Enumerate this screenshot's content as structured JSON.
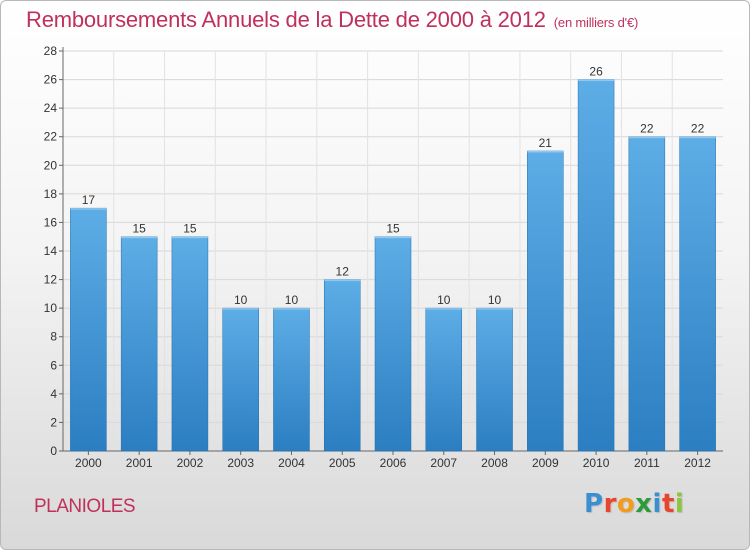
{
  "header": {
    "title": "Remboursements Annuels de la Dette de 2000 à 2012",
    "subtitle": "(en milliers d'€)"
  },
  "footer": {
    "commune": "PLANIOLES",
    "logo_letters": [
      {
        "ch": "P",
        "color": "#3a8fd0"
      },
      {
        "ch": "r",
        "color": "#e8452e"
      },
      {
        "ch": "o",
        "color": "#f39b1b"
      },
      {
        "ch": "x",
        "color": "#2e9b3a"
      },
      {
        "ch": "i",
        "color": "#3a8fd0"
      },
      {
        "ch": "t",
        "color": "#e8452e"
      },
      {
        "ch": "i",
        "color": "#8cc63f"
      }
    ]
  },
  "colors": {
    "bar_top": "#5dade6",
    "bar_bottom": "#2b7ec1",
    "title": "#c0305c"
  },
  "chart_data": {
    "type": "bar",
    "title": "Remboursements Annuels de la Dette de 2000 à 2012",
    "ylabel": "",
    "xlabel": "",
    "categories": [
      "2000",
      "2001",
      "2002",
      "2003",
      "2004",
      "2005",
      "2006",
      "2007",
      "2008",
      "2009",
      "2010",
      "2011",
      "2012"
    ],
    "values": [
      17,
      15,
      15,
      10,
      10,
      12,
      15,
      10,
      10,
      21,
      26,
      22,
      22
    ],
    "ylim": [
      0,
      28
    ],
    "yticks": [
      0,
      2,
      4,
      6,
      8,
      10,
      12,
      14,
      16,
      18,
      20,
      22,
      24,
      26,
      28
    ],
    "grid": true
  }
}
